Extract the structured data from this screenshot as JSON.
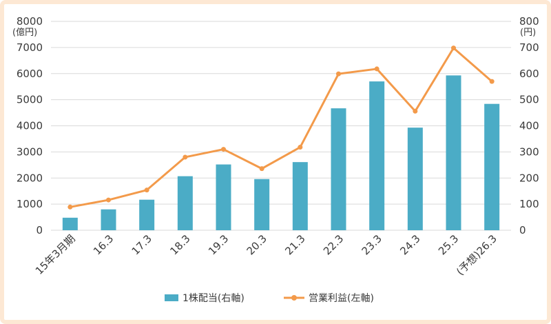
{
  "chart_data": {
    "type": "bar",
    "categories": [
      "15年3月期",
      "16.3",
      "17.3",
      "18.3",
      "19.3",
      "20.3",
      "21.3",
      "22.3",
      "23.3",
      "24.3",
      "25.3",
      "(予想)26.3"
    ],
    "series": [
      {
        "name": "1株配当(右軸)",
        "type": "bar",
        "axis": "right",
        "color": "#4bacc6",
        "values": [
          48,
          80,
          117,
          207,
          252,
          196,
          261,
          467,
          570,
          393,
          593,
          484
        ]
      },
      {
        "name": "営業利益(左軸)",
        "type": "line",
        "axis": "left",
        "color": "#f39a4a",
        "values": [
          890,
          1160,
          1540,
          2800,
          3100,
          2360,
          3180,
          5990,
          6180,
          4560,
          6980,
          5700
        ]
      }
    ],
    "y_left": {
      "unit": "(億円)",
      "range": [
        0,
        8000
      ],
      "ticks": [
        "0",
        "1000",
        "2000",
        "3000",
        "4000",
        "5000",
        "6000",
        "7000",
        "8000"
      ]
    },
    "y_right": {
      "unit": "(円)",
      "range": [
        0,
        800
      ],
      "ticks": [
        "0",
        "100",
        "200",
        "300",
        "400",
        "500",
        "600",
        "700",
        "800"
      ]
    },
    "grid": true,
    "legend_position": "bottom"
  }
}
